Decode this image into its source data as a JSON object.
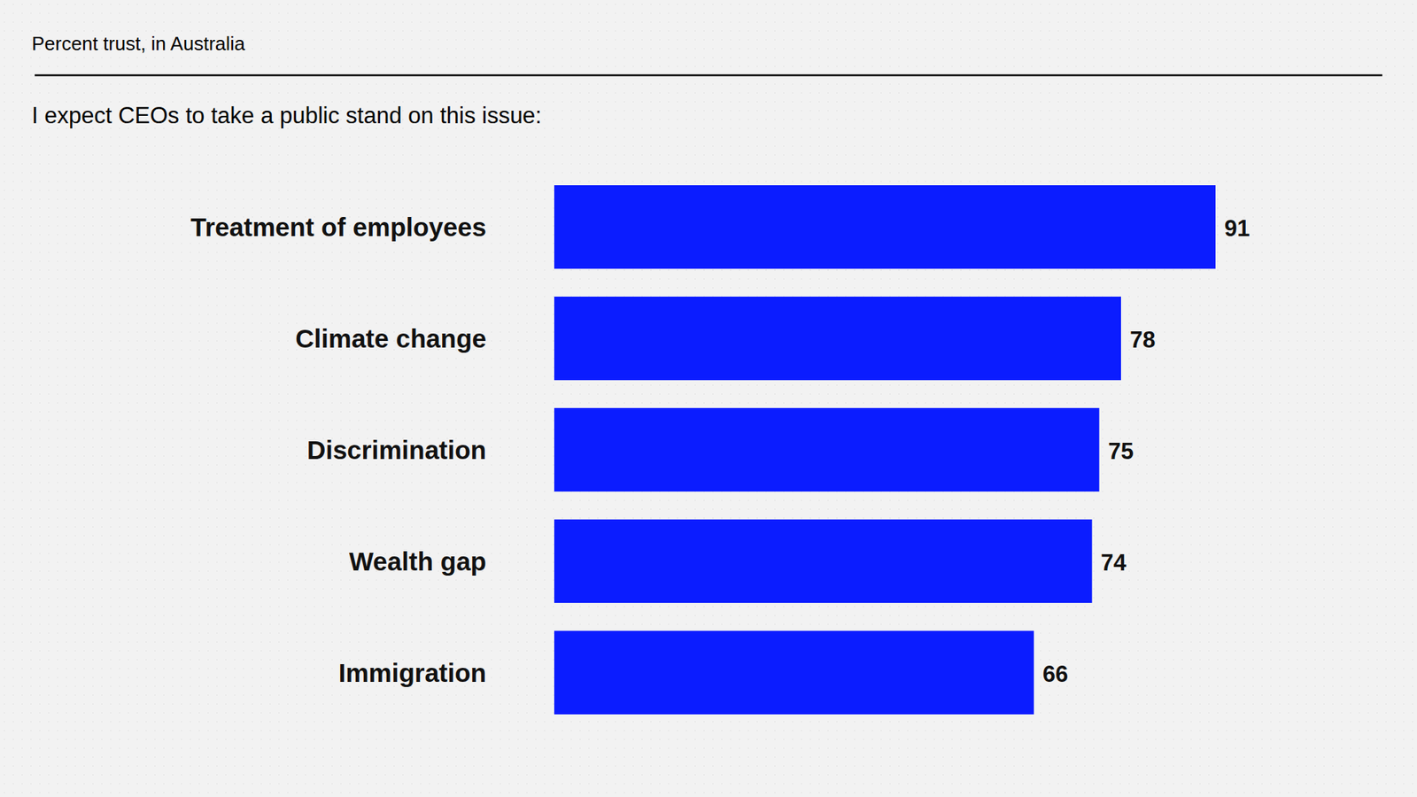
{
  "chart_data": {
    "type": "bar",
    "orientation": "horizontal",
    "subtitle": "Percent trust, in Australia",
    "title": "I expect CEOs to take a public stand on this issue:",
    "categories": [
      "Treatment of employees",
      "Climate change",
      "Discrimination",
      "Wealth gap",
      "Immigration"
    ],
    "values": [
      91,
      78,
      75,
      74,
      66
    ],
    "color": "#0b1cff",
    "data_labels": true,
    "tick_labels": false,
    "grid": false
  }
}
